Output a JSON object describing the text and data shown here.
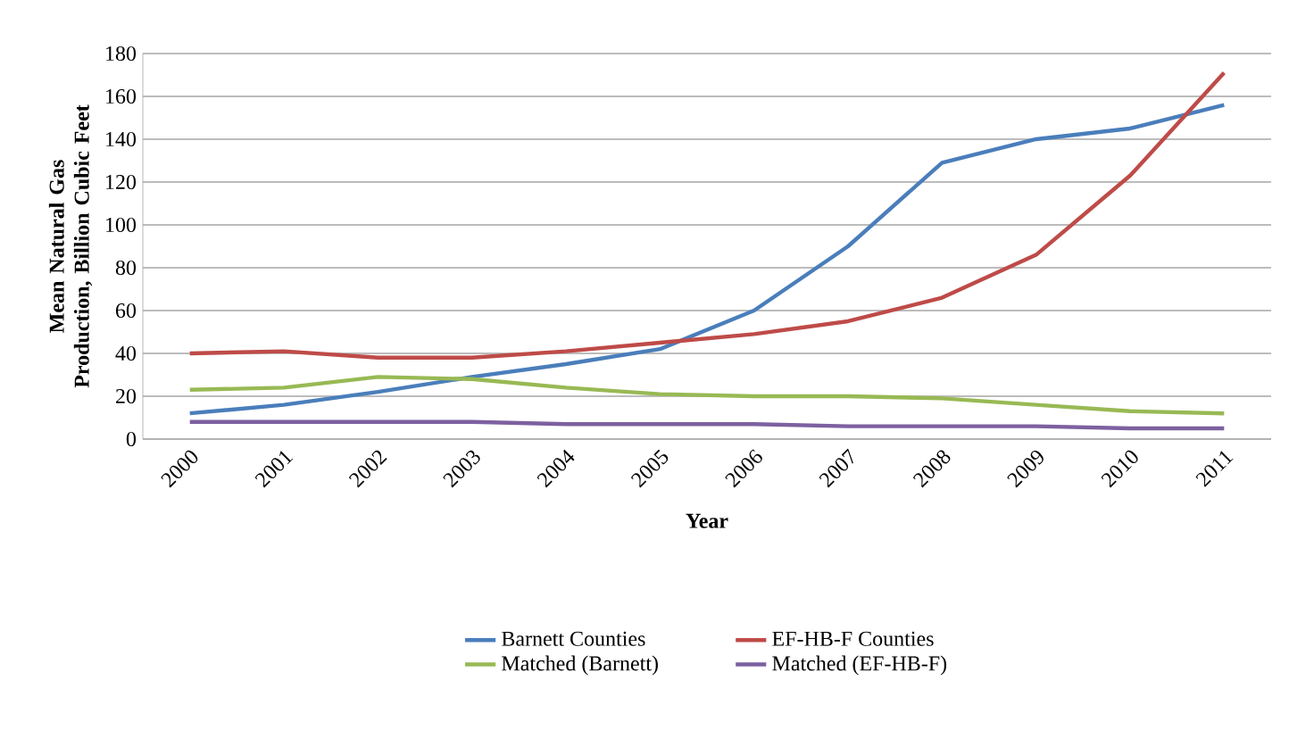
{
  "chart_data": {
    "type": "line",
    "xlabel": "Year",
    "ylabel": "Mean Natural Gas Production, Billion Cubic Feet",
    "categories": [
      "2000",
      "2001",
      "2002",
      "2003",
      "2004",
      "2005",
      "2006",
      "2007",
      "2008",
      "2009",
      "2010",
      "2011"
    ],
    "series": [
      {
        "name": "Barnett Counties",
        "color": "#4a7ebb",
        "values": [
          12,
          16,
          22,
          29,
          35,
          42,
          60,
          90,
          129,
          140,
          145,
          156
        ]
      },
      {
        "name": "EF-HB-F Counties",
        "color": "#be4b48",
        "values": [
          40,
          41,
          38,
          38,
          41,
          45,
          49,
          55,
          66,
          86,
          123,
          171
        ]
      },
      {
        "name": "Matched (Barnett)",
        "color": "#98b954",
        "values": [
          23,
          24,
          29,
          28,
          24,
          21,
          20,
          20,
          19,
          16,
          13,
          12
        ]
      },
      {
        "name": "Matched (EF-HB-F)",
        "color": "#7d60a0",
        "values": [
          8,
          8,
          8,
          8,
          7,
          7,
          7,
          6,
          6,
          6,
          5,
          5
        ]
      }
    ],
    "ylim": [
      0,
      180
    ],
    "yticks": [
      0,
      20,
      40,
      60,
      80,
      100,
      120,
      140,
      160,
      180
    ],
    "grid": "y",
    "legend": "bottom",
    "marker": "none",
    "line_style": "solid"
  }
}
